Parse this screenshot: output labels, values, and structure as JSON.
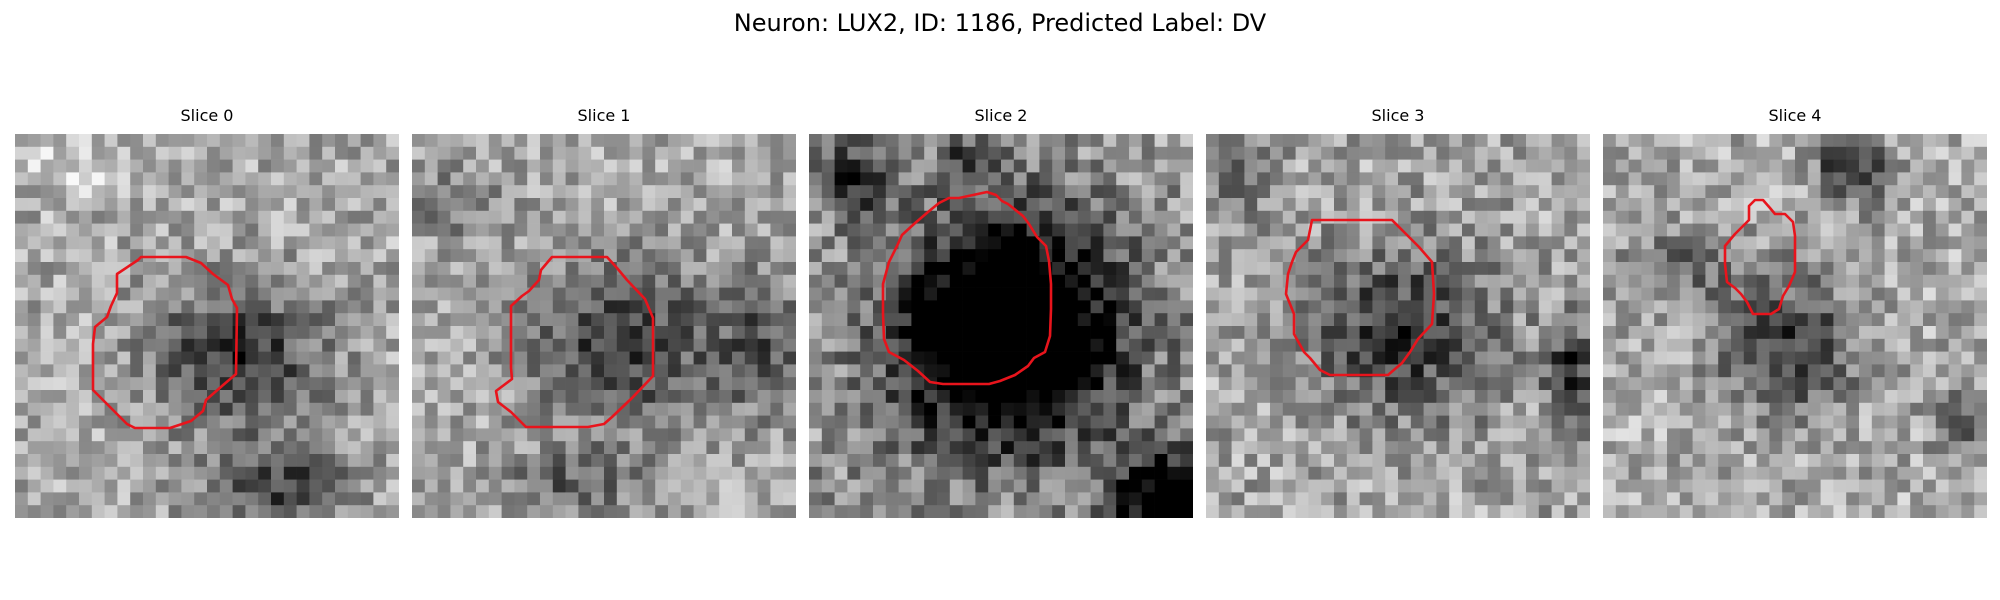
{
  "figure": {
    "title": "Neuron: LUX2, ID: 1186, Predicted Label: DV"
  },
  "panels": [
    {
      "title": "Slice 0"
    },
    {
      "title": "Slice 1"
    },
    {
      "title": "Slice 2"
    },
    {
      "title": "Slice 3"
    },
    {
      "title": "Slice 4"
    }
  ],
  "colors": {
    "contour": "#e8141c",
    "background": "#ffffff"
  }
}
